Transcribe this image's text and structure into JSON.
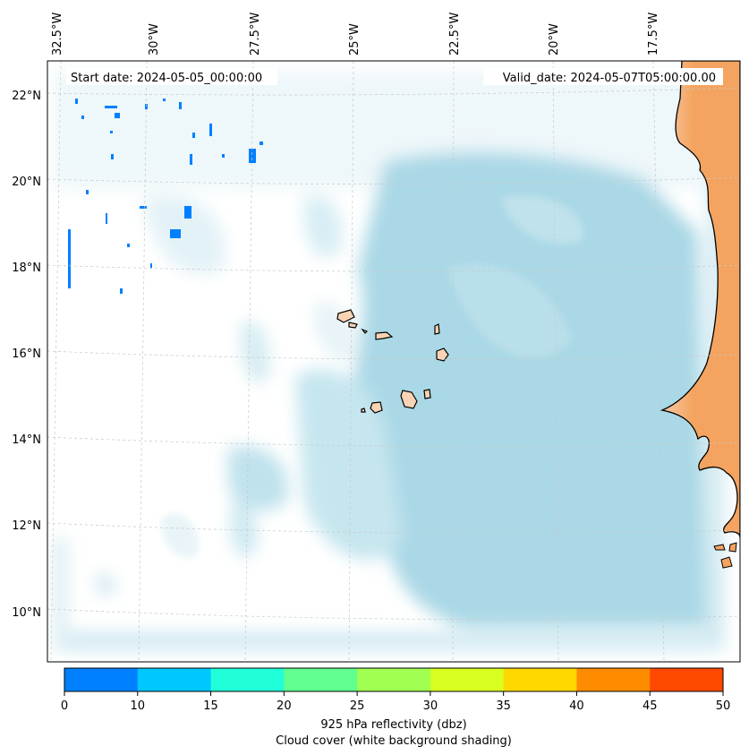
{
  "map": {
    "header_left": "Start date: 2024-05-05_00:00:00",
    "header_right": "Valid_date: 2024-05-07T05:00:00.00",
    "lon_labels": [
      "32.5°W",
      "30°W",
      "27.5°W",
      "25°W",
      "22.5°W",
      "20°W",
      "17.5°W"
    ],
    "lat_labels": [
      "22°N",
      "20°N",
      "18°N",
      "16°N",
      "14°N",
      "12°N",
      "10°N"
    ],
    "colors": {
      "cloud": "#aad8e6",
      "land": "#f4a460",
      "island": "#f9d4b4",
      "coast": "#000000",
      "grid": "#c8c8c8"
    }
  },
  "colorbar": {
    "ticks": [
      "0",
      "10",
      "15",
      "20",
      "25",
      "30",
      "35",
      "40",
      "45",
      "50"
    ],
    "colors": [
      "#0080ff",
      "#00c8ff",
      "#20ffd8",
      "#60ff90",
      "#a0ff50",
      "#d8ff20",
      "#ffd800",
      "#ff8c00",
      "#ff4800"
    ],
    "label": "925 hPa reflectivity (dbz)",
    "sublabel": "Cloud cover (white background shading)"
  }
}
